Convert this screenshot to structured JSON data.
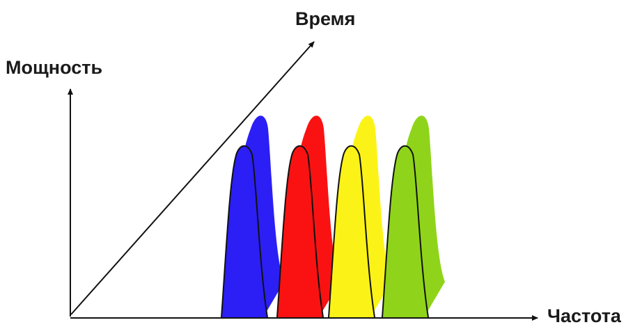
{
  "labels": {
    "power_axis": "Мощность",
    "time_axis": "Время",
    "frequency_axis": "Частота"
  },
  "colors": {
    "axis": "#111111",
    "pulse_outline": "#111111",
    "channels": [
      "#2b1ff5",
      "#fa1212",
      "#fbf317",
      "#8fd41a"
    ]
  },
  "channels": [
    {
      "name": "blue-channel",
      "color": "#2b1ff5"
    },
    {
      "name": "red-channel",
      "color": "#fa1212"
    },
    {
      "name": "yellow-channel",
      "color": "#fbf317"
    },
    {
      "name": "green-channel",
      "color": "#8fd41a"
    }
  ]
}
